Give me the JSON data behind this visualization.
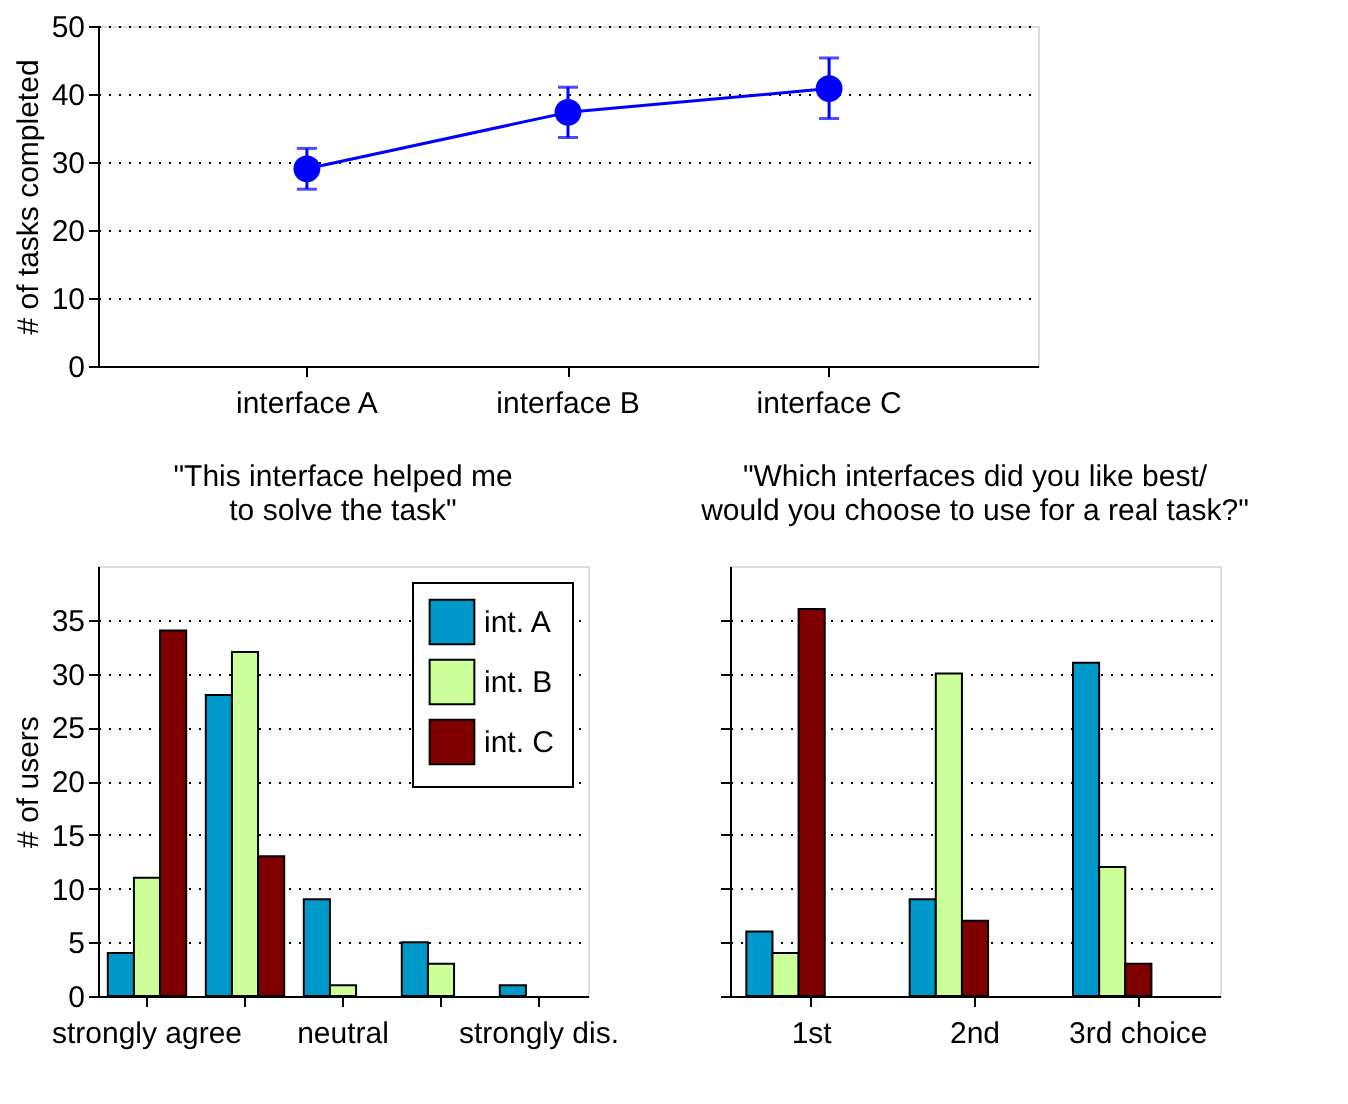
{
  "chart_data": [
    {
      "type": "line",
      "ylabel": "# of tasks completed",
      "categories": [
        "interface A",
        "interface B",
        "interface C"
      ],
      "ylim": [
        0,
        50
      ],
      "yticks": [
        0,
        10,
        20,
        30,
        40,
        50
      ],
      "grid": "y",
      "marker": "circle",
      "line_style": "solid",
      "series": [
        {
          "color": "#0000ff",
          "values": [
            29,
            37.3,
            40.8
          ],
          "errors": [
            [
              26,
              32
            ],
            [
              33.6,
              41
            ],
            [
              36.4,
              45.3
            ]
          ]
        }
      ]
    },
    {
      "type": "bar",
      "title": "\"This interface helped me\nto solve the task\"",
      "ylabel": "# of users",
      "categories": [
        "strongly agree",
        null,
        "neutral",
        null,
        "strongly dis."
      ],
      "ylim": [
        0,
        40
      ],
      "yticks": [
        0,
        5,
        10,
        15,
        20,
        25,
        30,
        35
      ],
      "grid": "y",
      "legend": "top right",
      "series": [
        {
          "name": "int. A",
          "color": "#0099cc",
          "values": [
            4,
            28,
            9,
            5,
            1
          ]
        },
        {
          "name": "int. B",
          "color": "#ccff99",
          "values": [
            11,
            32,
            1,
            3,
            0
          ]
        },
        {
          "name": "int. C",
          "color": "#800000",
          "values": [
            34,
            13,
            0,
            0,
            0
          ]
        }
      ]
    },
    {
      "type": "bar",
      "title": "\"Which interfaces did you like best/\nwould you choose to use for a real task?\"",
      "categories": [
        "1st",
        "2nd",
        "3rd choice"
      ],
      "ylim": [
        0,
        40
      ],
      "yticks": [
        0,
        5,
        10,
        15,
        20,
        25,
        30,
        35
      ],
      "grid": "y",
      "tick_labels": "x",
      "legend": false,
      "series": [
        {
          "color": "#0099cc",
          "values": [
            6,
            9,
            31
          ]
        },
        {
          "color": "#ccff99",
          "values": [
            4,
            30,
            12
          ]
        },
        {
          "color": "#800000",
          "values": [
            36,
            7,
            3
          ]
        }
      ]
    }
  ]
}
